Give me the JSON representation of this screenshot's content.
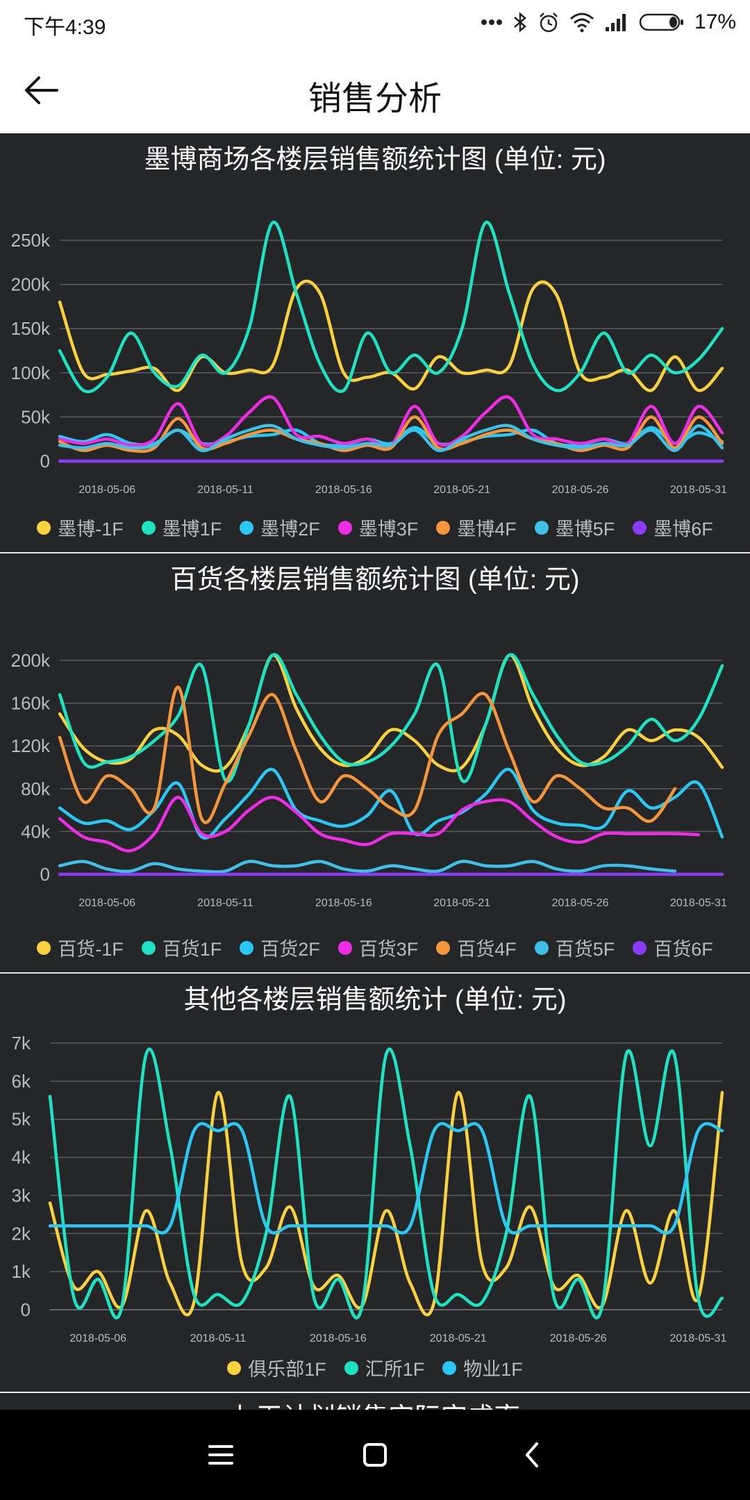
{
  "status": {
    "time": "下午4:39",
    "battery": "17%"
  },
  "header": {
    "title": "销售分析"
  },
  "charts": [
    {
      "title": "墨博商场各楼层销售额统计图 (单位: 元)",
      "yticks": [
        "0",
        "50k",
        "100k",
        "150k",
        "200k",
        "250k"
      ],
      "xticks": [
        "2018-05-06",
        "2018-05-11",
        "2018-05-16",
        "2018-05-21",
        "2018-05-26",
        "2018-05-31"
      ],
      "legend": [
        "墨博-1F",
        "墨博1F",
        "墨博2F",
        "墨博3F",
        "墨博4F",
        "墨博5F",
        "墨博6F"
      ]
    },
    {
      "title": "百货各楼层销售额统计图 (单位: 元)",
      "yticks": [
        "0",
        "40k",
        "80k",
        "120k",
        "160k",
        "200k"
      ],
      "xticks": [
        "2018-05-06",
        "2018-05-11",
        "2018-05-16",
        "2018-05-21",
        "2018-05-26",
        "2018-05-31"
      ],
      "legend": [
        "百货-1F",
        "百货1F",
        "百货2F",
        "百货3F",
        "百货4F",
        "百货5F",
        "百货6F"
      ]
    },
    {
      "title": "其他各楼层销售额统计 (单位: 元)",
      "yticks": [
        "0",
        "1k",
        "2k",
        "3k",
        "4k",
        "5k",
        "6k",
        "7k"
      ],
      "xticks": [
        "2018-05-06",
        "2018-05-11",
        "2018-05-16",
        "2018-05-21",
        "2018-05-26",
        "2018-05-31"
      ],
      "legend": [
        "俱乐部1F",
        "汇所1F",
        "物业1F"
      ]
    }
  ],
  "partial_title": "七天计划销售实际完成率",
  "chart_data": [
    {
      "type": "line",
      "title": "墨博商场各楼层销售额统计图 (单位: 元)",
      "x_start": "2018-05-04",
      "x_end": "2018-06-01",
      "x": [
        "2018-05-04",
        "2018-05-05",
        "2018-05-06",
        "2018-05-07",
        "2018-05-08",
        "2018-05-09",
        "2018-05-10",
        "2018-05-11",
        "2018-05-12",
        "2018-05-13",
        "2018-05-14",
        "2018-05-15",
        "2018-05-16",
        "2018-05-17",
        "2018-05-18",
        "2018-05-19",
        "2018-05-20",
        "2018-05-21",
        "2018-05-22",
        "2018-05-23",
        "2018-05-24",
        "2018-05-25",
        "2018-05-26",
        "2018-05-27",
        "2018-05-28",
        "2018-05-29",
        "2018-05-30",
        "2018-05-31",
        "2018-06-01"
      ],
      "ylim": [
        0,
        250000
      ],
      "colors": [
        "#f7d23e",
        "#1ee3c3",
        "#2bc8f3",
        "#ee2ee6",
        "#f4963c",
        "#3fc0e6",
        "#8a3cf4"
      ],
      "series": [
        {
          "name": "墨博-1F",
          "values": [
            180000,
            100000,
            98000,
            102000,
            105000,
            80000,
            118000,
            100000,
            103000,
            108000,
            195000,
            190000,
            100000,
            95000,
            100000,
            82000,
            118000,
            100000,
            103000,
            108000,
            195000,
            188000,
            100000,
            95000,
            103000,
            80000,
            118000,
            80000,
            105000
          ]
        },
        {
          "name": "墨博1F",
          "values": [
            125000,
            80000,
            95000,
            145000,
            100000,
            85000,
            120000,
            100000,
            150000,
            270000,
            190000,
            110000,
            80000,
            145000,
            100000,
            120000,
            100000,
            150000,
            270000,
            190000,
            110000,
            80000,
            100000,
            145000,
            100000,
            120000,
            100000,
            115000,
            150000
          ]
        },
        {
          "name": "墨博2F",
          "values": [
            28000,
            22000,
            30000,
            20000,
            20000,
            35000,
            20000,
            22000,
            28000,
            30000,
            35000,
            20000,
            18000,
            25000,
            20000,
            38000,
            20000,
            22000,
            28000,
            30000,
            35000,
            20000,
            18000,
            25000,
            20000,
            38000,
            20000,
            32000,
            22000
          ]
        },
        {
          "name": "墨博3F",
          "values": [
            25000,
            20000,
            25000,
            18000,
            25000,
            65000,
            20000,
            28000,
            55000,
            72000,
            30000,
            28000,
            20000,
            25000,
            18000,
            62000,
            20000,
            28000,
            55000,
            72000,
            30000,
            25000,
            20000,
            25000,
            20000,
            62000,
            20000,
            62000,
            32000
          ]
        },
        {
          "name": "墨博4F",
          "values": [
            22000,
            12000,
            18000,
            12000,
            15000,
            48000,
            15000,
            20000,
            30000,
            35000,
            25000,
            20000,
            12000,
            18000,
            15000,
            50000,
            15000,
            20000,
            30000,
            35000,
            25000,
            20000,
            12000,
            18000,
            15000,
            50000,
            15000,
            50000,
            20000
          ]
        },
        {
          "name": "墨博5F",
          "values": [
            18000,
            15000,
            20000,
            15000,
            18000,
            35000,
            12000,
            25000,
            35000,
            40000,
            25000,
            18000,
            15000,
            20000,
            18000,
            35000,
            12000,
            25000,
            35000,
            40000,
            25000,
            18000,
            15000,
            20000,
            18000,
            35000,
            12000,
            40000,
            15000
          ]
        },
        {
          "name": "墨博6F",
          "values": [
            0,
            0,
            0,
            0,
            0,
            0,
            0,
            0,
            0,
            0,
            0,
            0,
            0,
            0,
            0,
            0,
            0,
            0,
            0,
            0,
            0,
            0,
            0,
            0,
            0,
            0,
            0,
            0,
            0
          ]
        }
      ]
    },
    {
      "type": "line",
      "title": "百货各楼层销售额统计图 (单位: 元)",
      "x_start": "2018-05-04",
      "x_end": "2018-06-01",
      "x": [
        "2018-05-04",
        "2018-05-05",
        "2018-05-06",
        "2018-05-07",
        "2018-05-08",
        "2018-05-09",
        "2018-05-10",
        "2018-05-11",
        "2018-05-12",
        "2018-05-13",
        "2018-05-14",
        "2018-05-15",
        "2018-05-16",
        "2018-05-17",
        "2018-05-18",
        "2018-05-19",
        "2018-05-20",
        "2018-05-21",
        "2018-05-22",
        "2018-05-23",
        "2018-05-24",
        "2018-05-25",
        "2018-05-26",
        "2018-05-27",
        "2018-05-28",
        "2018-05-29",
        "2018-05-30",
        "2018-05-31",
        "2018-06-01"
      ],
      "ylim": [
        0,
        200000
      ],
      "colors": [
        "#f7d23e",
        "#1ee3c3",
        "#2bc8f3",
        "#ee2ee6",
        "#f4963c",
        "#3fc0e6",
        "#8a3cf4"
      ],
      "series": [
        {
          "name": "百货-1F",
          "values": [
            150000,
            118000,
            105000,
            108000,
            135000,
            130000,
            102000,
            100000,
            140000,
            205000,
            155000,
            118000,
            102000,
            110000,
            135000,
            125000,
            102000,
            100000,
            140000,
            205000,
            155000,
            118000,
            102000,
            110000,
            135000,
            125000,
            135000,
            128000,
            100000
          ]
        },
        {
          "name": "百货1F",
          "values": [
            168000,
            105000,
            105000,
            110000,
            125000,
            148000,
            195000,
            88000,
            140000,
            205000,
            168000,
            130000,
            105000,
            105000,
            120000,
            150000,
            195000,
            88000,
            140000,
            205000,
            168000,
            130000,
            105000,
            105000,
            120000,
            145000,
            125000,
            145000,
            195000
          ]
        },
        {
          "name": "百货2F",
          "values": [
            62000,
            48000,
            50000,
            42000,
            60000,
            85000,
            35000,
            52000,
            75000,
            98000,
            60000,
            50000,
            45000,
            55000,
            78000,
            38000,
            50000,
            58000,
            75000,
            98000,
            60000,
            48000,
            46000,
            45000,
            78000,
            62000,
            72000,
            85000,
            35000
          ]
        },
        {
          "name": "百货3F",
          "values": [
            52000,
            35000,
            30000,
            22000,
            38000,
            72000,
            38000,
            40000,
            60000,
            72000,
            58000,
            38000,
            32000,
            28000,
            38000,
            38000,
            38000,
            60000,
            68000,
            68000,
            50000,
            35000,
            30000,
            38000,
            38000,
            38000,
            38000,
            37000,
            null
          ]
        },
        {
          "name": "百货4F",
          "values": [
            128000,
            68000,
            92000,
            80000,
            62000,
            175000,
            52000,
            85000,
            130000,
            168000,
            115000,
            68000,
            92000,
            80000,
            62000,
            60000,
            130000,
            150000,
            168000,
            115000,
            68000,
            92000,
            80000,
            62000,
            62000,
            50000,
            80000,
            null,
            null
          ]
        },
        {
          "name": "百货5F",
          "values": [
            8000,
            12000,
            5000,
            3000,
            10000,
            5000,
            3000,
            3000,
            12000,
            8000,
            8000,
            12000,
            5000,
            3000,
            8000,
            5000,
            3000,
            12000,
            8000,
            8000,
            12000,
            5000,
            3000,
            8000,
            8000,
            5000,
            3000,
            null,
            null
          ]
        },
        {
          "name": "百货6F",
          "values": [
            0,
            0,
            0,
            0,
            0,
            0,
            0,
            0,
            0,
            0,
            0,
            0,
            0,
            0,
            0,
            0,
            0,
            0,
            0,
            0,
            0,
            0,
            0,
            0,
            0,
            0,
            0,
            0,
            0
          ]
        }
      ]
    },
    {
      "type": "line",
      "title": "其他各楼层销售额统计 (单位: 元)",
      "x_start": "2018-05-04",
      "x_end": "2018-06-01",
      "x": [
        "2018-05-04",
        "2018-05-05",
        "2018-05-06",
        "2018-05-07",
        "2018-05-08",
        "2018-05-09",
        "2018-05-10",
        "2018-05-11",
        "2018-05-12",
        "2018-05-13",
        "2018-05-14",
        "2018-05-15",
        "2018-05-16",
        "2018-05-17",
        "2018-05-18",
        "2018-05-19",
        "2018-05-20",
        "2018-05-21",
        "2018-05-22",
        "2018-05-23",
        "2018-05-24",
        "2018-05-25",
        "2018-05-26",
        "2018-05-27",
        "2018-05-28",
        "2018-05-29",
        "2018-05-30",
        "2018-05-31",
        "2018-06-01"
      ],
      "ylim": [
        0,
        7000
      ],
      "colors": [
        "#f7d23e",
        "#1ee3c3",
        "#2bc8f3"
      ],
      "series": [
        {
          "name": "俱乐部1F",
          "values": [
            2800,
            600,
            1000,
            100,
            2600,
            700,
            200,
            5700,
            1200,
            1100,
            2700,
            600,
            900,
            100,
            2600,
            700,
            200,
            5700,
            1200,
            1100,
            2700,
            600,
            900,
            100,
            2600,
            700,
            2600,
            300,
            5700
          ]
        },
        {
          "name": "汇所1F",
          "values": [
            5600,
            300,
            800,
            100,
            6700,
            4300,
            400,
            400,
            200,
            2000,
            5600,
            300,
            800,
            100,
            6700,
            4300,
            400,
            400,
            200,
            2000,
            5600,
            300,
            800,
            100,
            6700,
            4300,
            6700,
            300,
            300
          ]
        },
        {
          "name": "物业1F",
          "values": [
            2200,
            2200,
            2200,
            2200,
            2200,
            2200,
            4700,
            4700,
            4700,
            2200,
            2200,
            2200,
            2200,
            2200,
            2200,
            2200,
            4700,
            4700,
            4700,
            2200,
            2200,
            2200,
            2200,
            2200,
            2200,
            2200,
            2200,
            4700,
            4700
          ]
        }
      ]
    }
  ]
}
